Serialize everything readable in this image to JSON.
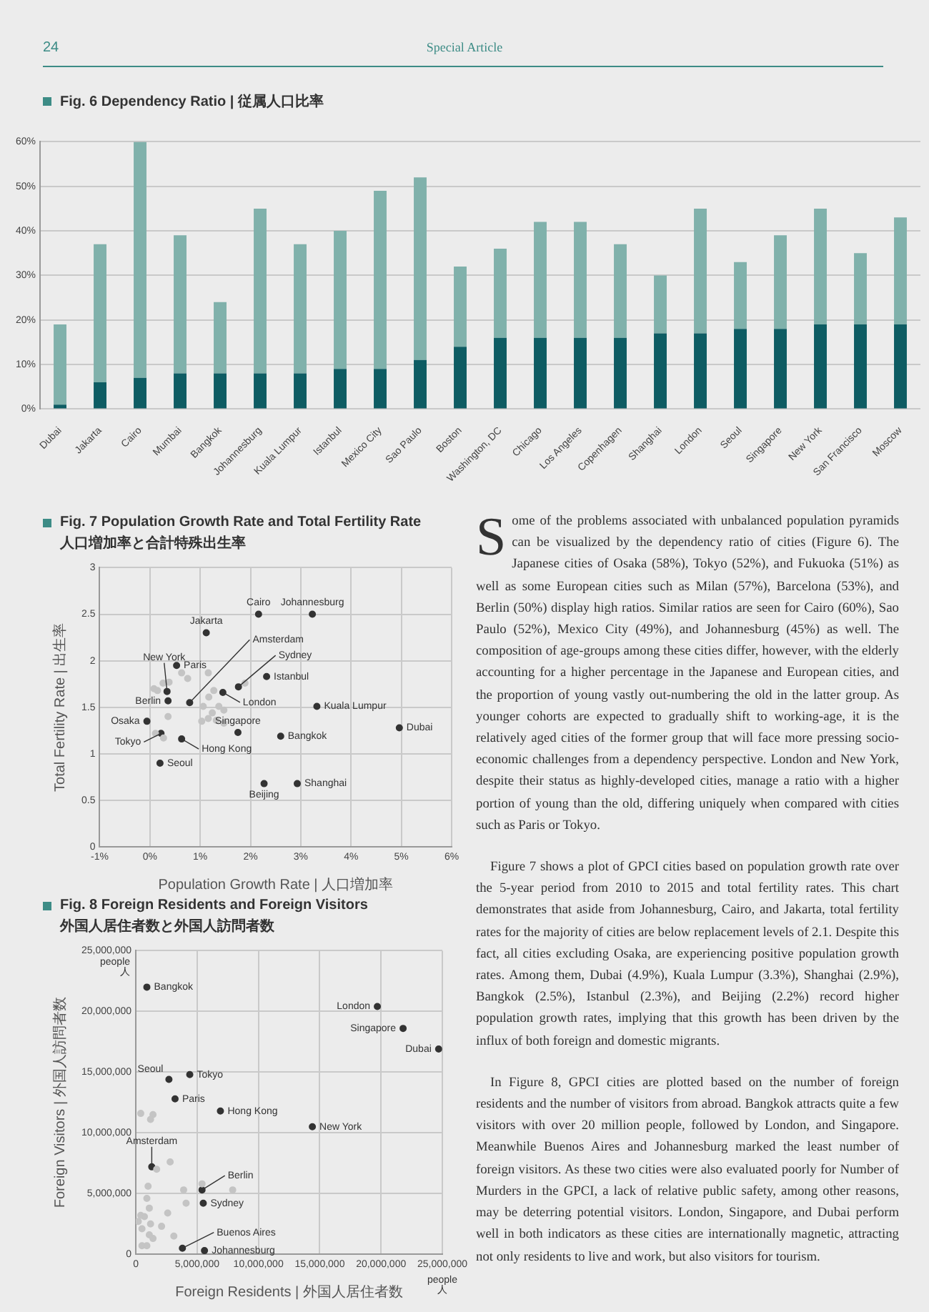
{
  "chart_data": [
    {
      "type": "bar",
      "title": "Fig. 6 Dependency Ratio | 従属人口比率",
      "annotations": [
        "24",
        "Special Article"
      ],
      "categories": [
        "Dubai",
        "Jakarta",
        "Cairo",
        "Mumbai",
        "Bangkok",
        "Johannesburg",
        "Kuala Lumpur",
        "Istanbul",
        "Mexico City",
        "Sao Paulo",
        "Boston",
        "Washington, DC",
        "Chicago",
        "Los Angeles",
        "Copenhagen",
        "Shanghai",
        "London",
        "Seoul",
        "Singapore",
        "New York",
        "San Francisco",
        "Moscow"
      ],
      "stacked": true,
      "series": [
        {
          "color": "#0e5c63",
          "values": [
            1,
            6,
            7,
            8,
            8,
            8,
            8,
            9,
            9,
            11,
            14,
            16,
            16,
            16,
            16,
            17,
            17,
            18,
            18,
            19,
            19,
            19
          ]
        },
        {
          "color": "#80b1ab",
          "values": [
            18,
            31,
            53,
            31,
            16,
            37,
            29,
            31,
            40,
            41,
            18,
            20,
            26,
            26,
            21,
            13,
            28,
            15,
            21,
            26,
            16,
            24
          ]
        }
      ],
      "ylim": [
        0,
        60
      ],
      "yticks": [
        {
          "value": 0,
          "label": "0%"
        },
        {
          "value": 10,
          "label": "10%"
        },
        {
          "value": 20,
          "label": "20%"
        },
        {
          "value": 30,
          "label": "30%"
        },
        {
          "value": 40,
          "label": "40%"
        },
        {
          "value": 50,
          "label": "50%"
        },
        {
          "value": 60,
          "label": "60%"
        }
      ],
      "grid": "y"
    },
    {
      "type": "scatter",
      "title": "Fig. 7 Population Growth Rate and Total Fertility Rate",
      "subtitle": "人口増加率と合計特殊出生率",
      "xlabel": "Population Growth Rate | 人口増加率",
      "ylabel": "Total Fertility Rate | 出生率",
      "xlim": [
        -1,
        6
      ],
      "xticks": [
        {
          "value": -1,
          "label": "-1%"
        },
        {
          "value": 0,
          "label": "0%"
        },
        {
          "value": 1,
          "label": "1%"
        },
        {
          "value": 2,
          "label": "2%"
        },
        {
          "value": 3,
          "label": "3%"
        },
        {
          "value": 4,
          "label": "4%"
        },
        {
          "value": 5,
          "label": "5%"
        },
        {
          "value": 6,
          "label": "6%"
        }
      ],
      "ylim": [
        0,
        3
      ],
      "yticks": [
        0,
        0.5,
        1,
        1.5,
        2,
        2.5,
        3
      ],
      "grid": true,
      "marker": "circle",
      "series": [
        {
          "color": "#c4c4c4",
          "x": [
            0.08,
            0.26,
            0.38,
            0.63,
            0.75,
            1.16,
            0.15,
            1.27,
            1.17,
            1.37,
            1.06,
            1.24,
            1.47,
            1.16,
            1.32,
            1.47,
            1.03,
            0.36,
            0.27,
            0.11,
            1.89
          ],
          "values": [
            1.7,
            1.76,
            1.77,
            1.87,
            1.81,
            1.87,
            1.68,
            1.68,
            1.61,
            1.51,
            1.51,
            1.44,
            1.47,
            1.38,
            1.36,
            1.33,
            1.35,
            1.4,
            1.17,
            1.22,
            1.76
          ]
        },
        {
          "color": "#333333",
          "x": [
            2.16,
            3.23,
            1.12,
            0.34,
            0.53,
            0.36,
            0.79,
            1.76,
            2.32,
            1.45,
            3.32,
            4.96,
            -0.06,
            0.22,
            0.63,
            1.75,
            2.6,
            0.2,
            2.27,
            2.93
          ],
          "values": [
            2.5,
            2.5,
            2.3,
            1.67,
            1.95,
            1.57,
            1.55,
            1.72,
            1.83,
            1.66,
            1.51,
            1.28,
            1.35,
            1.22,
            1.16,
            1.23,
            1.19,
            0.9,
            0.68,
            0.68
          ]
        }
      ],
      "annotations": [
        {
          "text": "Cairo",
          "x": 2.16,
          "y": 2.5
        },
        {
          "text": "Johannesburg",
          "x": 3.23,
          "y": 2.5
        },
        {
          "text": "Jakarta",
          "x": 1.12,
          "y": 2.3
        },
        {
          "text": "New York",
          "x": 0.34,
          "y": 1.67
        },
        {
          "text": "Paris",
          "x": 0.53,
          "y": 1.95
        },
        {
          "text": "Berlin",
          "x": 0.36,
          "y": 1.57
        },
        {
          "text": "Amsterdam",
          "x": 0.79,
          "y": 1.55
        },
        {
          "text": "Sydney",
          "x": 1.76,
          "y": 1.72
        },
        {
          "text": "Istanbul",
          "x": 2.32,
          "y": 1.83
        },
        {
          "text": "London",
          "x": 1.45,
          "y": 1.66
        },
        {
          "text": "Kuala Lumpur",
          "x": 3.32,
          "y": 1.51
        },
        {
          "text": "Dubai",
          "x": 4.96,
          "y": 1.28
        },
        {
          "text": "Osaka",
          "x": -0.06,
          "y": 1.35
        },
        {
          "text": "Tokyo",
          "x": 0.22,
          "y": 1.22
        },
        {
          "text": "Hong Kong",
          "x": 0.63,
          "y": 1.16
        },
        {
          "text": "Singapore",
          "x": 1.75,
          "y": 1.23
        },
        {
          "text": "Bangkok",
          "x": 2.6,
          "y": 1.19
        },
        {
          "text": "Seoul",
          "x": 0.2,
          "y": 0.9
        },
        {
          "text": "Beijing",
          "x": 2.27,
          "y": 0.68
        },
        {
          "text": "Shanghai",
          "x": 2.93,
          "y": 0.68
        }
      ]
    },
    {
      "type": "other",
      "annotations": [
        "Some of the problems associated with unbalanced population pyramids can be visualized by the dependency ratio of cities (Figure 6). The Japanese cities of Osaka (58%), Tokyo (52%), and Fukuoka (51%) as well as some European cities such as Milan (57%), Barcelona (53%), and Berlin (50%) display high ratios. Similar ratios are seen for Cairo (60%), Sao Paulo (52%), Mexico City (49%), and Johannesburg (45%) as well. The composition of age-groups among these cities differ, however, with the elderly accounting for a higher percentage in the Japanese and European cities, and the proportion of young vastly out-numbering the old in the latter group. As younger cohorts are expected to gradually shift to working-age, it is the relatively aged cities of the former group that will face more pressing socio-economic challenges from a dependency perspective. London and New York, despite their status as highly-developed cities, manage a ratio with a higher portion of young than the old, differing uniquely when compared with cities such as Paris or Tokyo.",
        "Figure 7 shows a plot of GPCI cities based on population growth rate over the 5-year period from 2010 to 2015 and total fertility rates. This chart demonstrates that aside from Johannesburg, Cairo, and Jakarta, total fertility rates for the majority of cities are below replacement levels of 2.1. Despite this fact, all cities excluding Osaka, are experiencing positive population growth rates. Among them, Dubai (4.9%), Kuala Lumpur (3.3%), Shanghai (2.9%), Bangkok (2.5%), Istanbul (2.3%), and Beijing (2.2%) record higher population growth rates, implying that this growth has been driven by the influx of both foreign and domestic migrants.",
        "In Figure 8, GPCI cities are plotted based on the number of foreign residents and the number of visitors from abroad. Bangkok attracts quite a few visitors with over 20 million people, followed by London, and Singapore. Meanwhile Buenos Aires and Johannesburg marked the least number of foreign visitors. As these two cities were also evaluated poorly for Number of Murders in the GPCI, a lack of relative public safety, among other reasons, may be deterring potential visitors. London, Singapore, and Dubai perform well in both indicators as these cities are internationally magnetic, attracting not only residents to live and work, but also visitors for tourism."
      ]
    },
    {
      "type": "scatter",
      "title": "Fig. 8 Foreign Residents and Foreign Visitors",
      "subtitle": "外国人居住者数と外国人訪問者数",
      "xlabel": "Foreign Residents | 外国人居住者数",
      "ylabel": "Foreign Visitors | 外国人訪問者数",
      "xlim": [
        0,
        25000000
      ],
      "xticks": [
        0,
        {
          "value": 5000000,
          "label": "5,000,000"
        },
        {
          "value": 10000000,
          "label": "10,000,000"
        },
        {
          "value": 15000000,
          "label": "15,000,000"
        },
        {
          "value": 20000000,
          "label": "20,000,000"
        },
        {
          "value": 25000000,
          "label": "25,000,000"
        }
      ],
      "ylim": [
        0,
        25000000
      ],
      "yticks": [
        0,
        {
          "value": 5000000,
          "label": "5,000,000"
        },
        {
          "value": 10000000,
          "label": "10,000,000"
        },
        {
          "value": 15000000,
          "label": "15,000,000"
        },
        {
          "value": 20000000,
          "label": "20,000,000"
        },
        {
          "value": 25000000,
          "label": "25,000,000"
        }
      ],
      "grid": true,
      "marker": "circle",
      "series": [
        {
          "color": "#c4c4c4",
          "x": [
            400000,
            1400000,
            1200000,
            2800000,
            1700000,
            1000000,
            900000,
            3900000,
            4100000,
            7900000,
            5400000,
            1100000,
            400000,
            200000,
            700000,
            1200000,
            2100000,
            2600000,
            500000,
            3100000,
            1100000,
            1400000,
            500000,
            900000
          ],
          "values": [
            11600000,
            11500000,
            11100000,
            7600000,
            7000000,
            5600000,
            4600000,
            5300000,
            4200000,
            5300000,
            5800000,
            3800000,
            3200000,
            2700000,
            3100000,
            2500000,
            2300000,
            3400000,
            2100000,
            1500000,
            1600000,
            1300000,
            700000,
            700000
          ]
        },
        {
          "color": "#333333",
          "x": [
            900000,
            19700000,
            21800000,
            24700000,
            2700000,
            4400000,
            3200000,
            6900000,
            14400000,
            1300000,
            5400000,
            5500000,
            3800000,
            5600000
          ],
          "values": [
            22000000,
            20400000,
            18600000,
            16900000,
            14400000,
            14800000,
            12800000,
            11800000,
            10500000,
            7200000,
            5300000,
            4200000,
            500000,
            300000
          ]
        }
      ],
      "annotations": [
        "people",
        "人",
        "people",
        "人",
        {
          "text": "Bangkok",
          "x": 900000,
          "y": 22000000
        },
        {
          "text": "London",
          "x": 19700000,
          "y": 20400000
        },
        {
          "text": "Singapore",
          "x": 21800000,
          "y": 18600000
        },
        {
          "text": "Dubai",
          "x": 24700000,
          "y": 16900000
        },
        {
          "text": "Seoul",
          "x": 2700000,
          "y": 14400000
        },
        {
          "text": "Tokyo",
          "x": 4400000,
          "y": 14800000
        },
        {
          "text": "Paris",
          "x": 3200000,
          "y": 12800000
        },
        {
          "text": "Hong Kong",
          "x": 6900000,
          "y": 11800000
        },
        {
          "text": "New York",
          "x": 14400000,
          "y": 10500000
        },
        {
          "text": "Amsterdam",
          "x": 1300000,
          "y": 7200000
        },
        {
          "text": "Berlin",
          "x": 5400000,
          "y": 5300000
        },
        {
          "text": "Sydney",
          "x": 5500000,
          "y": 4200000
        },
        {
          "text": "Buenos Aires",
          "x": 3800000,
          "y": 500000
        },
        {
          "text": "Johannesburg",
          "x": 5600000,
          "y": 300000
        }
      ]
    }
  ]
}
